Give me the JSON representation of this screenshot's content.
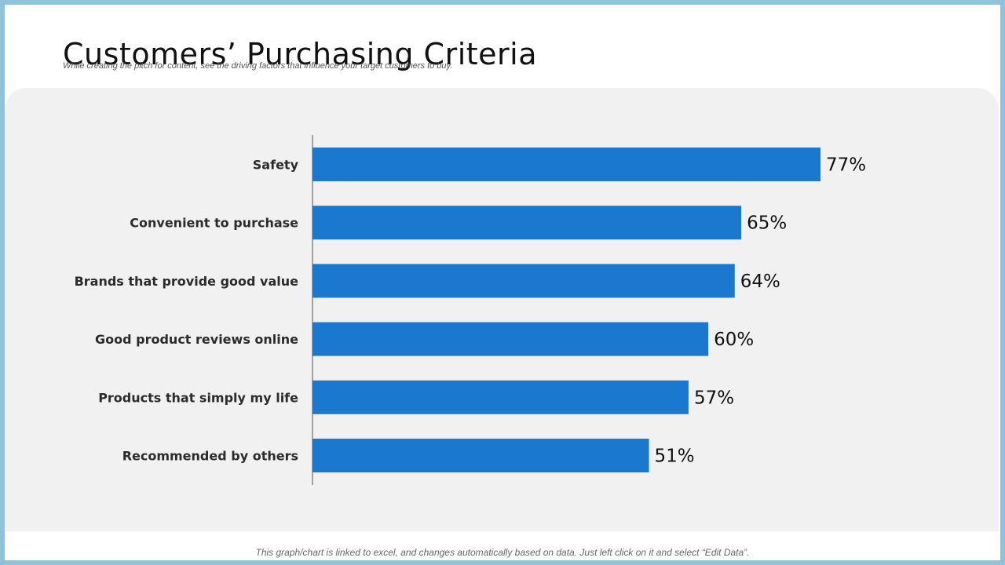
{
  "title": "Customers’ Purchasing Criteria",
  "subtitle": "While creating the pitch for content, see the driving factors that influence your target customers to buy.",
  "footnote": "This graph/chart is linked to excel, and changes automatically based on data. Just left click on it and select “Edit Data”.",
  "colors": {
    "bar": "#1a79cf",
    "axis": "#555555",
    "panel": "#f1f1f1",
    "border": "#8fc3dc"
  },
  "chart_data": {
    "type": "bar",
    "orientation": "horizontal",
    "categories": [
      "Safety",
      "Convenient to purchase",
      "Brands that provide good value",
      "Good product reviews online",
      "Products that simply my life",
      "Recommended by others"
    ],
    "values": [
      77,
      65,
      64,
      60,
      57,
      51
    ],
    "value_labels": [
      "77%",
      "65%",
      "64%",
      "60%",
      "57%",
      "51%"
    ],
    "unit": "%",
    "xlim": [
      0,
      100
    ],
    "grid": false,
    "legend": "none"
  }
}
